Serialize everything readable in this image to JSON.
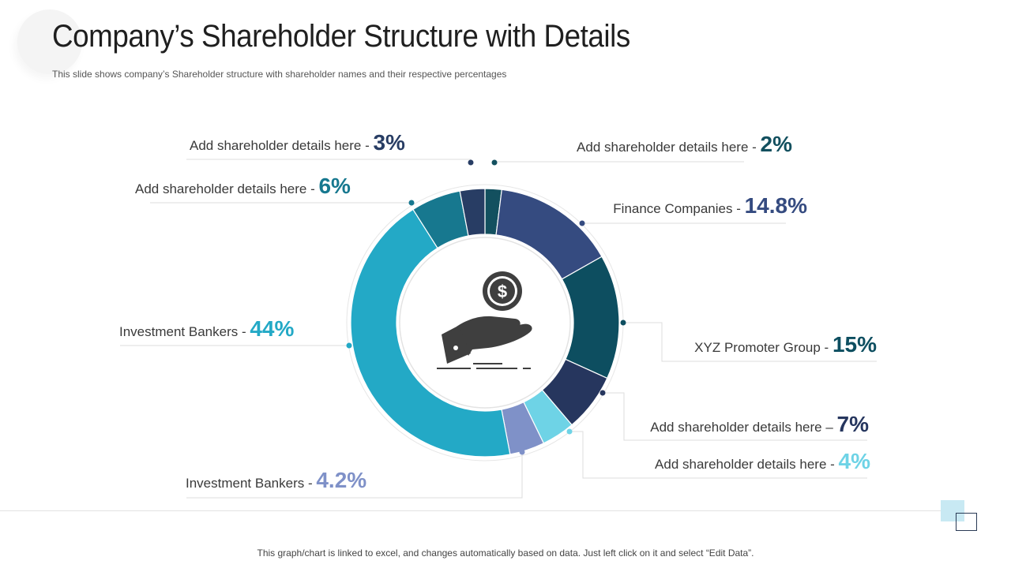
{
  "header": {
    "title": "Company’s Shareholder Structure with Details",
    "subtitle": "This slide shows company’s Shareholder structure with shareholder names and their respective percentages"
  },
  "footer": {
    "note": "This graph/chart is linked to excel, and changes automatically based on data. Just left click on it and select “Edit Data”."
  },
  "center_icon": "hand-holding-dollar-icon",
  "chart_data": {
    "type": "pie",
    "variant": "donut",
    "title": "",
    "slices": [
      {
        "name": "Add shareholder details here",
        "sep": " - ",
        "value": 2,
        "value_label": "2%",
        "color": "#13505f",
        "label_side": "right"
      },
      {
        "name": "Finance Companies",
        "sep": " - ",
        "value": 14.8,
        "value_label": "14.8%",
        "color": "#354b80",
        "label_side": "right"
      },
      {
        "name": "XYZ Promoter Group",
        "sep": " - ",
        "value": 15,
        "value_label": "15%",
        "color": "#0d4e60",
        "label_side": "right"
      },
      {
        "name": "Add shareholder details here",
        "sep": " – ",
        "value": 7,
        "value_label": "7%",
        "color": "#26365e",
        "label_side": "right"
      },
      {
        "name": "Add shareholder details here",
        "sep": " - ",
        "value": 4,
        "value_label": "4%",
        "color": "#6ed3e6",
        "label_side": "right"
      },
      {
        "name": "Investment Bankers",
        "sep": " - ",
        "value": 4.2,
        "value_label": "4.2%",
        "color": "#7f91c8",
        "label_side": "left"
      },
      {
        "name": "Investment Bankers",
        "sep": " - ",
        "value": 44,
        "value_label": "44%",
        "color": "#23a9c6",
        "label_side": "left"
      },
      {
        "name": "Add shareholder details here",
        "sep": " - ",
        "value": 6,
        "value_label": "6%",
        "color": "#17788f",
        "label_side": "left"
      },
      {
        "name": "Add shareholder details here",
        "sep": " - ",
        "value": 3,
        "value_label": "3%",
        "color": "#283d64",
        "label_side": "left"
      }
    ]
  }
}
